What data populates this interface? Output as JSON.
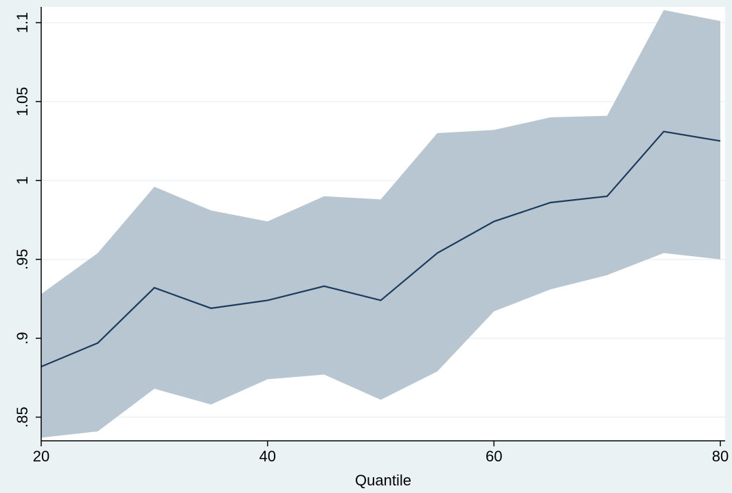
{
  "chart_data": {
    "type": "area",
    "title": "",
    "xlabel": "Quantile",
    "ylabel": "",
    "xlim": [
      20,
      80
    ],
    "ylim": [
      0.835,
      1.11
    ],
    "x_ticks": [
      {
        "value": 20,
        "label": "20"
      },
      {
        "value": 40,
        "label": "40"
      },
      {
        "value": 60,
        "label": "60"
      },
      {
        "value": 80,
        "label": "80"
      }
    ],
    "y_ticks": [
      {
        "value": 0.85,
        "label": ".85"
      },
      {
        "value": 0.9,
        "label": ".9"
      },
      {
        "value": 0.95,
        "label": ".95"
      },
      {
        "value": 1.0,
        "label": "1"
      },
      {
        "value": 1.05,
        "label": "1.05"
      },
      {
        "value": 1.1,
        "label": "1.1"
      }
    ],
    "grid": true,
    "x": [
      20,
      25,
      30,
      35,
      40,
      45,
      50,
      55,
      60,
      65,
      70,
      75,
      80
    ],
    "series": [
      {
        "values": [
          0.882,
          0.897,
          0.932,
          0.919,
          0.924,
          0.933,
          0.924,
          0.954,
          0.974,
          0.986,
          0.99,
          1.031,
          1.025
        ]
      }
    ],
    "band": {
      "lower": [
        0.837,
        0.841,
        0.868,
        0.858,
        0.874,
        0.877,
        0.861,
        0.879,
        0.917,
        0.931,
        0.94,
        0.954,
        0.95
      ],
      "upper": [
        0.928,
        0.954,
        0.996,
        0.981,
        0.974,
        0.99,
        0.988,
        1.03,
        1.032,
        1.04,
        1.041,
        1.108,
        1.101
      ]
    },
    "colors": {
      "background": "#eaf2f3",
      "plot_background": "#ffffff",
      "band": "#b8c6d2",
      "line": "#1b3a5c",
      "grid": "#eaf2f3",
      "axis": "#000000"
    }
  }
}
